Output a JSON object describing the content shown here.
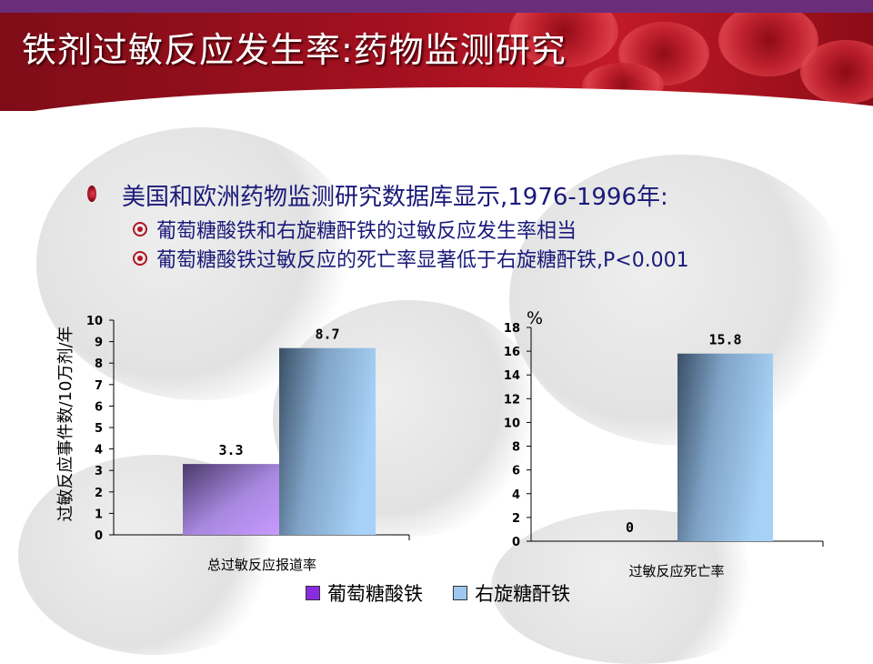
{
  "title": "铁剂过敏反应发生率:药物监测研究",
  "content": {
    "main_point": "美国和欧洲药物监测研究数据库显示,1976-1996年:",
    "sub_points": [
      "葡萄糖酸铁和右旋糖酐铁的过敏反应发生率相当",
      "葡萄糖酸铁过敏反应的死亡率显著低于右旋糖酐铁,P<0.001"
    ]
  },
  "legend": {
    "items": [
      {
        "label": "葡萄糖酸铁",
        "color": "#8a2be2"
      },
      {
        "label": "右旋糖酐铁",
        "color": "#9ec8f0"
      }
    ]
  },
  "colors": {
    "header_red": "#a3101f",
    "stripe_purple": "#6a2d7a",
    "text_navy": "#1a1a7a",
    "bar_purple_light": "#c89aff",
    "bar_purple_dark": "#4a3a6a",
    "bar_blue_light": "#a7d1f7",
    "bar_blue_dark": "#3a4f66"
  },
  "chart_data": [
    {
      "type": "bar",
      "ylabel": "过敏反应事件数/10万剂/年",
      "xlabel": "总过敏反应报道率",
      "ylim": [
        0,
        10
      ],
      "yticks": [
        0,
        1,
        2,
        3,
        4,
        5,
        6,
        7,
        8,
        9,
        10
      ],
      "series": [
        {
          "name": "葡萄糖酸铁",
          "value": 3.3,
          "label": "3.3"
        },
        {
          "name": "右旋糖酐铁",
          "value": 8.7,
          "label": "8.7"
        }
      ],
      "grid": false
    },
    {
      "type": "bar",
      "unit_label": "%",
      "xlabel": "过敏反应死亡率",
      "ylim": [
        0,
        18
      ],
      "yticks": [
        0,
        2,
        4,
        6,
        8,
        10,
        12,
        14,
        16,
        18
      ],
      "series": [
        {
          "name": "葡萄糖酸铁",
          "value": 0,
          "label": "0"
        },
        {
          "name": "右旋糖酐铁",
          "value": 15.8,
          "label": "15.8"
        }
      ],
      "grid": false
    }
  ]
}
